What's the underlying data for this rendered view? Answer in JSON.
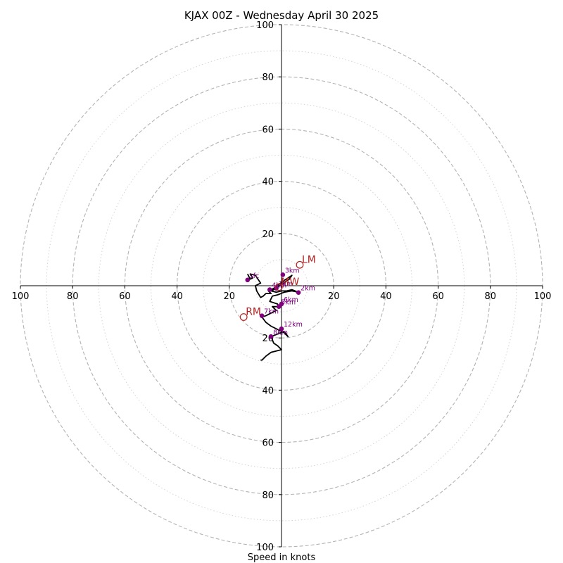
{
  "title": "KJAX 00Z - Wednesday April 30 2025",
  "xlabel": "Speed in knots",
  "colors": {
    "hodograph": "#000000",
    "height_markers": "#800080",
    "storm_motion": "#b22222",
    "ring_major": "#b3b3b3",
    "ring_minor": "#d3d3d3",
    "axes": "#000000"
  },
  "tick_labels": {
    "left": [
      "100",
      "80",
      "60",
      "40",
      "20"
    ],
    "right": [
      "20",
      "40",
      "60",
      "80",
      "100"
    ],
    "top": [
      "100",
      "80",
      "60",
      "40",
      "20"
    ],
    "bottom": [
      "20",
      "40",
      "60",
      "80",
      "100"
    ]
  },
  "chart_data": {
    "type": "hodograph",
    "title": "KJAX 00Z - Wednesday April 30 2025",
    "xlabel": "Speed in knots",
    "units": "knots",
    "range": [
      -100,
      100
    ],
    "rings_major": [
      20,
      40,
      60,
      80,
      100
    ],
    "rings_minor": [
      10,
      30,
      50,
      70,
      90
    ],
    "grid": true,
    "hodograph_trace_uv": [
      [
        -13,
        4.5
      ],
      [
        -12,
        2.5
      ],
      [
        -11,
        3
      ],
      [
        -12,
        4.5
      ],
      [
        -10,
        4
      ],
      [
        -8,
        1
      ],
      [
        -10,
        0
      ],
      [
        -9.5,
        -2
      ],
      [
        -8,
        -4.5
      ],
      [
        -7,
        -4
      ],
      [
        -6,
        -3
      ],
      [
        -4,
        -3
      ],
      [
        -5,
        -2
      ],
      [
        -3,
        -1
      ],
      [
        -1,
        0.5
      ],
      [
        1,
        2
      ],
      [
        4,
        4
      ],
      [
        3,
        2.5
      ],
      [
        0,
        0.5
      ],
      [
        -2,
        -1
      ],
      [
        -4,
        -2
      ],
      [
        -2,
        -2.5
      ],
      [
        0,
        -2
      ],
      [
        2,
        -2
      ],
      [
        4,
        -1.5
      ],
      [
        6.5,
        -2.5
      ],
      [
        4,
        -2
      ],
      [
        1,
        -2.5
      ],
      [
        -1.5,
        -3.5
      ],
      [
        -3.5,
        -4
      ],
      [
        -4.5,
        -6
      ],
      [
        -1.5,
        -7
      ],
      [
        -1,
        -8
      ],
      [
        -3.5,
        -8
      ],
      [
        -2,
        -9.5
      ],
      [
        -5,
        -11
      ],
      [
        -6,
        -11.5
      ],
      [
        -7.5,
        -12
      ],
      [
        -6,
        -14
      ],
      [
        -4,
        -15.5
      ],
      [
        -1,
        -17
      ],
      [
        1,
        -18
      ],
      [
        2.5,
        -19.5
      ],
      [
        1,
        -17.5
      ],
      [
        -4,
        -19.5
      ],
      [
        -3,
        -22
      ],
      [
        -1.5,
        -23
      ],
      [
        0,
        -24.5
      ],
      [
        -4,
        -25.5
      ],
      [
        -6,
        -27
      ],
      [
        -7.5,
        -28.5
      ],
      [
        -8,
        -28.5
      ]
    ],
    "height_markers": [
      {
        "label": "sfc",
        "u": -13,
        "v": 2.2
      },
      {
        "label": "3km",
        "u": 0.5,
        "v": 4.2
      },
      {
        "label": "2km",
        "u": 6.5,
        "v": -2.6
      },
      {
        "label": "4km",
        "u": -4.5,
        "v": -1.5
      },
      {
        "label": "1km",
        "u": -2,
        "v": -1
      },
      {
        "label": "5km",
        "u": -1,
        "v": -8
      },
      {
        "label": "6km",
        "u": 0,
        "v": -7
      },
      {
        "label": "7km",
        "u": -7.5,
        "v": -11.5
      },
      {
        "label": "12km",
        "u": 0,
        "v": -16.5
      },
      {
        "label": "8km",
        "u": -4,
        "v": -19.5
      }
    ],
    "storm_motion": [
      {
        "label": "LM",
        "u": 7,
        "v": 8
      },
      {
        "label": "RM",
        "u": -14.5,
        "v": -12
      },
      {
        "label": "MW",
        "u": -1,
        "v": -0.5
      }
    ]
  }
}
